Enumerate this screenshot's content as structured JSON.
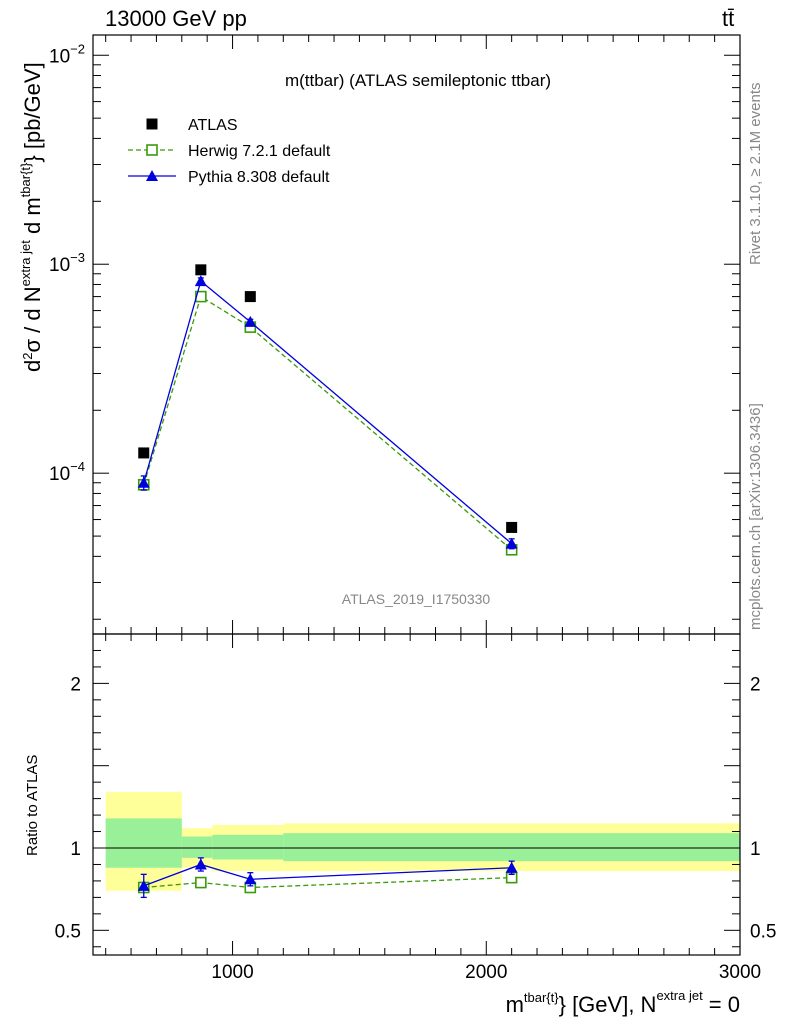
{
  "header": {
    "left_label": "13000 GeV pp",
    "right_label": "tt̄"
  },
  "side_labels": {
    "rivet": "Rivet 3.1.10, ≥ 2.1M events",
    "mcplots": "mcplots.cern.ch [arXiv:1306.3436]"
  },
  "chart_data": [
    {
      "type": "scatter",
      "title": "m(ttbar) (ATLAS semileptonic ttbar)",
      "watermark": "ATLAS_2019_I1750330",
      "ylabel": "d²σ / d N^{extra jet} d m^{tbar{t}} [pb/GeV]",
      "ylabel_parts": {
        "base": "d",
        "sup1": "2",
        "mid": "σ / d N",
        "sup2": "extra jet",
        "mid2": " d m",
        "sup3": "tbar{t}",
        "end": "} [pb/GeV]"
      },
      "yscale": "log",
      "ylim": [
        1.7e-05,
        0.0125
      ],
      "xlim": [
        450,
        3000
      ],
      "y_ticks": [
        {
          "value": 0.0001,
          "base": "10",
          "exp": "−4"
        },
        {
          "value": 0.001,
          "base": "10",
          "exp": "−3"
        },
        {
          "value": 0.01,
          "base": "10",
          "exp": "−2"
        }
      ],
      "legend_position": "top-left",
      "series": [
        {
          "name": "ATLAS",
          "marker": "filled-square",
          "color": "#000000",
          "x": [
            650,
            875,
            1070,
            2100
          ],
          "y": [
            0.000125,
            0.00094,
            0.0007,
            5.5e-05
          ],
          "xerr": [
            [
              150,
              100
            ],
            [
              75,
              75
            ],
            [
              125,
              125
            ],
            [
              900,
              900
            ]
          ]
        },
        {
          "name": "Herwig 7.2.1 default",
          "marker": "open-square",
          "line": "dashed",
          "color": "#3a9a0a",
          "x": [
            650,
            875,
            1070,
            2100
          ],
          "y": [
            8.8e-05,
            0.0007,
            0.0005,
            4.3e-05
          ]
        },
        {
          "name": "Pythia 8.308 default",
          "marker": "filled-triangle",
          "line": "solid",
          "color": "#0000dd",
          "x": [
            650,
            875,
            1070,
            2100
          ],
          "y": [
            9e-05,
            0.00083,
            0.00053,
            4.6e-05
          ],
          "yerr": [
            7e-06,
            3e-05,
            1.5e-05,
            2.5e-06
          ]
        }
      ]
    },
    {
      "type": "scatter",
      "ylabel": "Ratio to ATLAS",
      "xlabel_parts": {
        "base": "m",
        "sup1": "tbar{t}",
        "mid": "} [GeV], N",
        "sup2": "extra jet",
        "end": " = 0"
      },
      "ylim": [
        0.35,
        2.3
      ],
      "xlim": [
        450,
        3000
      ],
      "x_ticks": [
        1000,
        2000,
        3000
      ],
      "y_ticks": [
        {
          "value": 0.5,
          "label": "0.5"
        },
        {
          "value": 1,
          "label": "1"
        },
        {
          "value": 2,
          "label": "2"
        }
      ],
      "reference_line": 1,
      "uncertainty_bands": [
        {
          "x": [
            500,
            800
          ],
          "inner": [
            0.88,
            1.18
          ],
          "outer": [
            0.74,
            1.34
          ]
        },
        {
          "x": [
            800,
            920
          ],
          "inner": [
            0.94,
            1.07
          ],
          "outer": [
            0.88,
            1.12
          ]
        },
        {
          "x": [
            920,
            1200
          ],
          "inner": [
            0.93,
            1.08
          ],
          "outer": [
            0.86,
            1.14
          ]
        },
        {
          "x": [
            1200,
            3000
          ],
          "inner": [
            0.92,
            1.09
          ],
          "outer": [
            0.86,
            1.15
          ]
        }
      ],
      "series": [
        {
          "name": "Herwig 7.2.1 default",
          "marker": "open-square",
          "line": "dashed",
          "color": "#3a9a0a",
          "x": [
            650,
            875,
            1070,
            2100
          ],
          "y": [
            0.76,
            0.79,
            0.76,
            0.82
          ],
          "yerr": [
            0.03,
            0.03,
            0.02,
            0.03
          ]
        },
        {
          "name": "Pythia 8.308 default",
          "marker": "filled-triangle",
          "line": "solid",
          "color": "#0000dd",
          "x": [
            650,
            875,
            1070,
            2100
          ],
          "y": [
            0.77,
            0.9,
            0.81,
            0.88
          ],
          "yerr": [
            0.07,
            0.04,
            0.04,
            0.04
          ]
        }
      ]
    }
  ]
}
